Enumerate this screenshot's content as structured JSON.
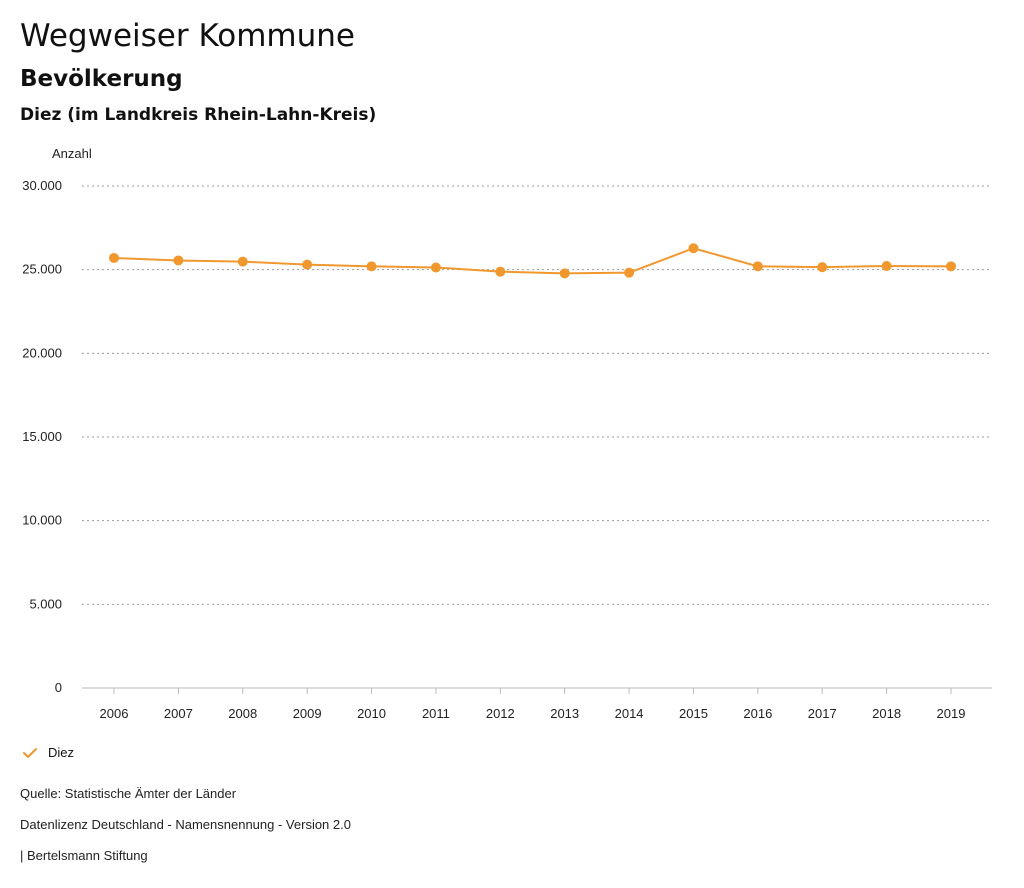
{
  "header": {
    "title": "Wegweiser Kommune",
    "subtitle": "Bevölkerung",
    "region": "Diez (im Landkreis Rhein-Lahn-Kreis)"
  },
  "chart_data": {
    "type": "line",
    "ylabel": "Anzahl",
    "xlabel": "",
    "ylim": [
      0,
      30000
    ],
    "yticks": [
      0,
      5000,
      10000,
      15000,
      20000,
      25000,
      30000
    ],
    "ytick_labels": [
      "0",
      "5.000",
      "10.000",
      "15.000",
      "20.000",
      "25.000",
      "30.000"
    ],
    "categories": [
      "2006",
      "2007",
      "2008",
      "2009",
      "2010",
      "2011",
      "2012",
      "2013",
      "2014",
      "2015",
      "2016",
      "2017",
      "2018",
      "2019"
    ],
    "series": [
      {
        "name": "Diez",
        "color": "#f0982e",
        "values": [
          25700,
          25550,
          25480,
          25300,
          25200,
          25130,
          24880,
          24780,
          24820,
          26280,
          25200,
          25150,
          25220,
          25200
        ]
      }
    ],
    "grid": true,
    "legend_position": "bottom-left"
  },
  "legend": {
    "label": "Diez",
    "check_icon": "checkmark-icon"
  },
  "footer": {
    "source": "Quelle: Statistische Ämter der Länder",
    "license": "Datenlizenz Deutschland - Namensnennung - Version 2.0",
    "credit": "| Bertelsmann Stiftung"
  }
}
